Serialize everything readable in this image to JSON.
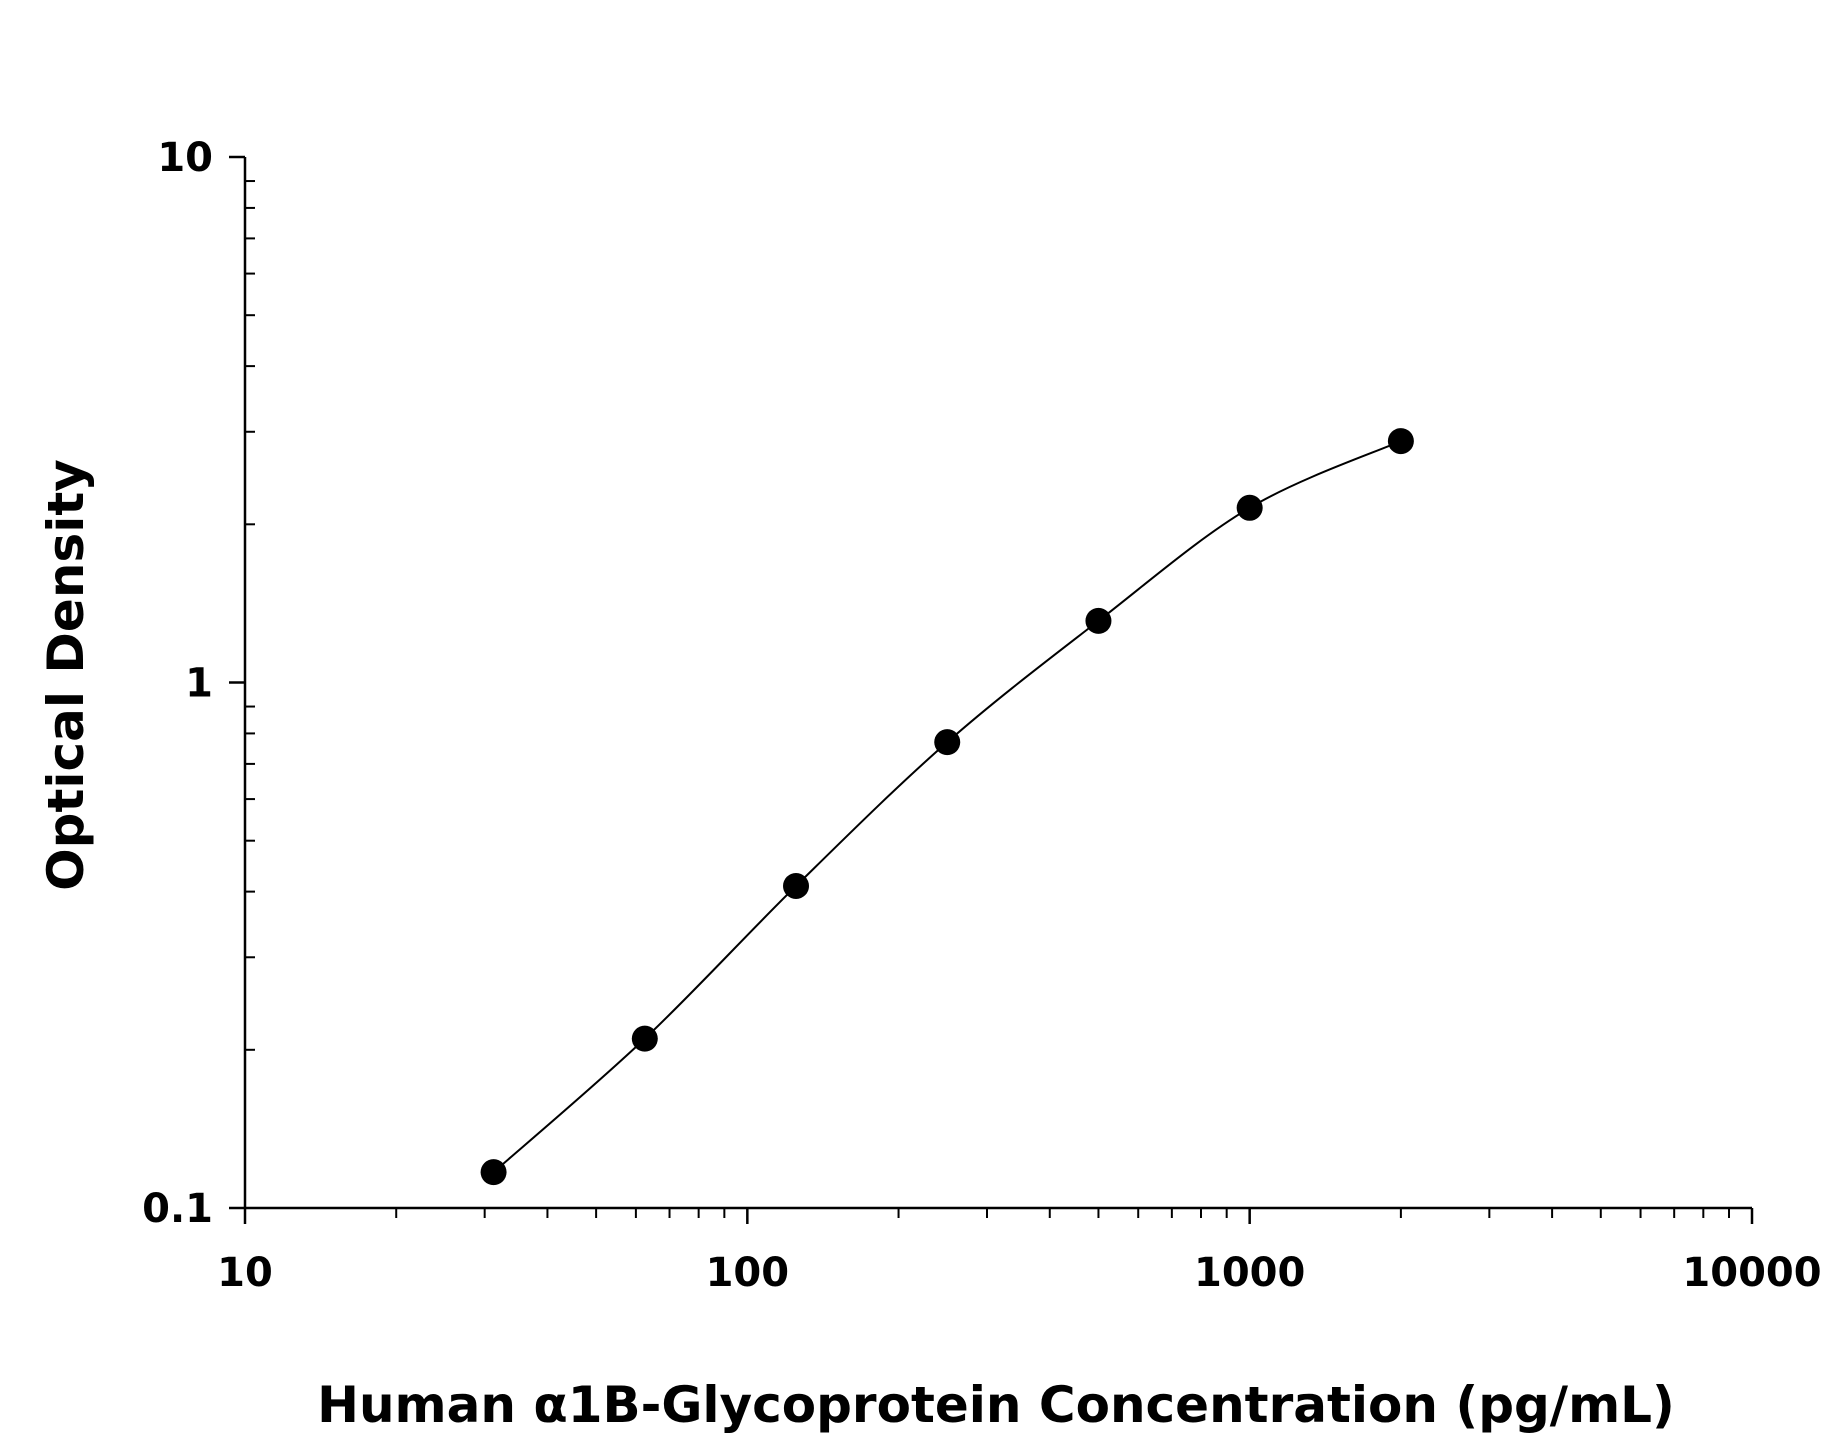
{
  "chart_data": {
    "type": "scatter",
    "title": "",
    "xlabel": "Human α1B-Glycoprotein Concentration (pg/mL)",
    "ylabel": "Optical Density",
    "x_scale": "log",
    "y_scale": "log",
    "xlim": [
      10,
      10000
    ],
    "ylim": [
      0.1,
      10
    ],
    "x_ticks": [
      "10",
      "100",
      "1000",
      "10000"
    ],
    "y_ticks": [
      "0.1",
      "1",
      "10"
    ],
    "grid": false,
    "legend": "none",
    "series": [
      {
        "x": [
          31.25,
          62.5,
          125,
          250,
          500,
          1000,
          2000
        ],
        "y": [
          0.117,
          0.21,
          0.41,
          0.77,
          1.31,
          2.15,
          2.88
        ],
        "markers": true,
        "fit_curve": true
      }
    ],
    "colors": {
      "marker": "#000000",
      "line": "#000000",
      "axis": "#000000"
    }
  }
}
